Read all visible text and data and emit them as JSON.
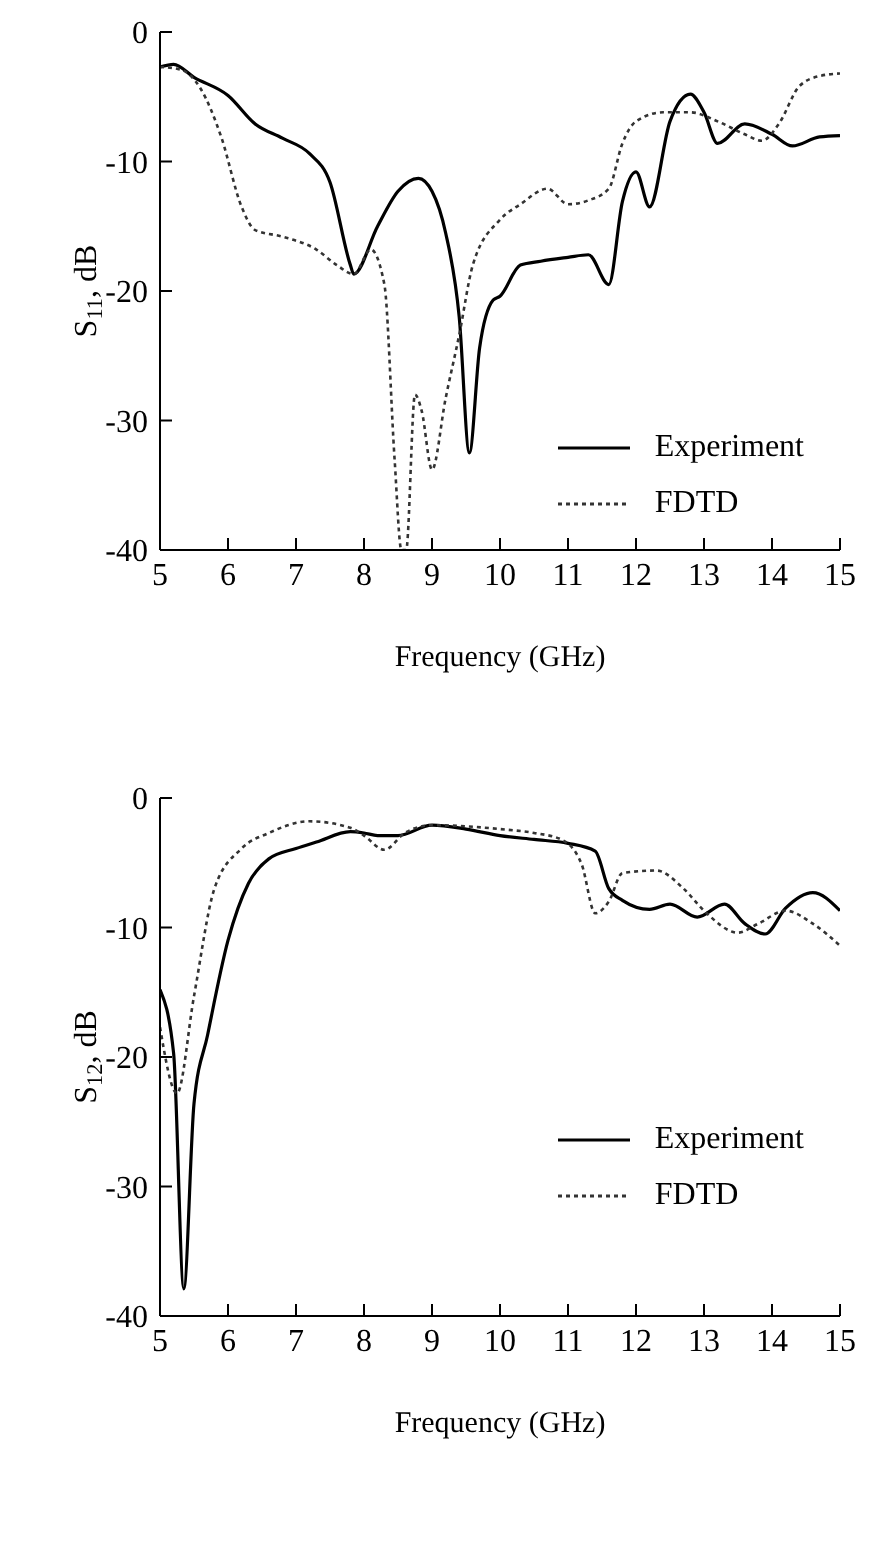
{
  "chart_data": [
    {
      "type": "line",
      "ylabel": "S$_{11}$, dB",
      "xlabel": "Frequency (GHz)",
      "xlim": [
        5,
        15
      ],
      "xticks": [
        5,
        6,
        7,
        8,
        9,
        10,
        11,
        12,
        13,
        14,
        15
      ],
      "ylim": [
        -40,
        0
      ],
      "yticks": [
        -40,
        -30,
        -20,
        -10,
        0
      ],
      "grid": false,
      "legend": "bottom right",
      "marker": "none",
      "series": [
        {
          "name": "Experiment",
          "color": "#000000",
          "line_style": "solid",
          "x": [
            5,
            5.2,
            5.5,
            6,
            6.4,
            6.8,
            7.2,
            7.5,
            7.8,
            7.85,
            8.2,
            8.5,
            8.8,
            9,
            9.2,
            9.4,
            9.55,
            9.7,
            9.9,
            10,
            10.3,
            10.6,
            11,
            11.3,
            11.6,
            11.8,
            12,
            12.2,
            12.5,
            12.8,
            13,
            13.2,
            13.6,
            14,
            14.3,
            14.7,
            15
          ],
          "values": [
            -2.7,
            -2.5,
            -3.5,
            -4.9,
            -7.1,
            -8.2,
            -9.4,
            -11.6,
            -18,
            -18.7,
            -15,
            -12.3,
            -11.3,
            -12.3,
            -15.5,
            -22,
            -32.5,
            -24.4,
            -20.7,
            -20.4,
            -18,
            -17.7,
            -17.4,
            -17.2,
            -19.5,
            -13.1,
            -10.8,
            -13.5,
            -6.9,
            -4.8,
            -6.2,
            -8.6,
            -7.1,
            -7.9,
            -8.8,
            -8.1,
            -8
          ]
        },
        {
          "name": "FDTD",
          "color": "#333333",
          "line_style": "dotted",
          "x": [
            5,
            5.3,
            5.6,
            5.9,
            6.2,
            6.4,
            6.8,
            7.3,
            7.6,
            7.85,
            8.1,
            8.3,
            8.45,
            8.55,
            8.62,
            8.75,
            8.85,
            9,
            9.2,
            9.4,
            9.6,
            10,
            10.3,
            10.7,
            11,
            11.3,
            11.6,
            11.8,
            12,
            12.4,
            12.8,
            13.2,
            13.6,
            13.85,
            14.1,
            14.4,
            14.7,
            15
          ],
          "values": [
            -2.7,
            -2.9,
            -4.4,
            -8.1,
            -13.5,
            -15.3,
            -15.8,
            -16.8,
            -18,
            -18.7,
            -16.8,
            -19.5,
            -33,
            -40,
            -40,
            -28,
            -29.3,
            -33.8,
            -28.3,
            -23.4,
            -18,
            -14.5,
            -13.3,
            -12.1,
            -13.3,
            -13,
            -12.1,
            -8.6,
            -6.9,
            -6.2,
            -6.2,
            -6.9,
            -7.9,
            -8.4,
            -7.1,
            -4.2,
            -3.4,
            -3.2
          ]
        }
      ]
    },
    {
      "type": "line",
      "ylabel": "S$_{12}$, dB",
      "xlabel": "Frequency (GHz)",
      "xlim": [
        5,
        15
      ],
      "xticks": [
        5,
        6,
        7,
        8,
        9,
        10,
        11,
        12,
        13,
        14,
        15
      ],
      "ylim": [
        -40,
        0
      ],
      "yticks": [
        -40,
        -30,
        -20,
        -10,
        0
      ],
      "grid": false,
      "legend": "right",
      "marker": "none",
      "series": [
        {
          "name": "Experiment",
          "color": "#000000",
          "line_style": "solid",
          "x": [
            5,
            5.2,
            5.35,
            5.5,
            5.7,
            6,
            6.3,
            6.6,
            7,
            7.3,
            7.8,
            8,
            8.2,
            8.5,
            9,
            9.5,
            10,
            10.5,
            11,
            11.4,
            11.6,
            11.8,
            12.2,
            12.5,
            12.9,
            13.3,
            13.6,
            13.9,
            14.2,
            14.6,
            15
          ],
          "values": [
            -14.8,
            -19.7,
            -37.9,
            -23.6,
            -18.3,
            -11,
            -6.6,
            -4.7,
            -3.9,
            -3.4,
            -2.6,
            -2.7,
            -2.9,
            -2.9,
            -2.1,
            -2.4,
            -2.9,
            -3.2,
            -3.5,
            -4.1,
            -7,
            -7.9,
            -8.6,
            -8.2,
            -9.2,
            -8.2,
            -9.7,
            -10.5,
            -8.5,
            -7.3,
            -8.7
          ]
        },
        {
          "name": "FDTD",
          "color": "#333333",
          "line_style": "dotted",
          "x": [
            5,
            5.25,
            5.5,
            5.8,
            6.2,
            6.6,
            7.2,
            7.8,
            8,
            8.3,
            8.6,
            9,
            10,
            10.5,
            10.9,
            11.2,
            11.4,
            11.6,
            11.8,
            12.3,
            12.7,
            13,
            13.5,
            13.8,
            14.2,
            14.6,
            15
          ],
          "values": [
            -17.7,
            -22.8,
            -15.3,
            -7,
            -3.9,
            -2.7,
            -1.8,
            -2.3,
            -2.9,
            -4,
            -2.7,
            -2.1,
            -2.4,
            -2.7,
            -3.2,
            -5.1,
            -8.9,
            -8,
            -5.8,
            -5.6,
            -7,
            -8.7,
            -10.4,
            -9.7,
            -8.7,
            -9.7,
            -11.4
          ]
        }
      ]
    }
  ]
}
